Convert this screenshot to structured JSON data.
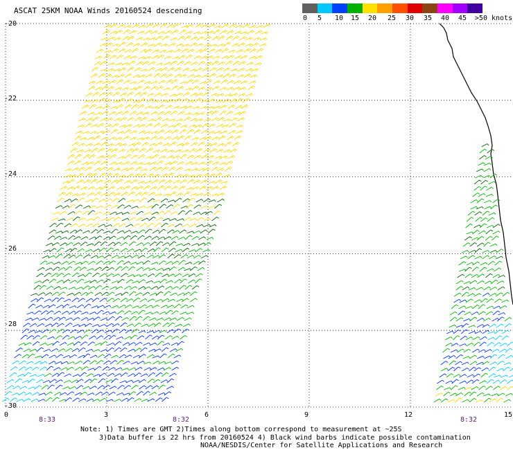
{
  "title": "ASCAT 25KM NOAA Winds 20160524 descending",
  "legend": {
    "colors": [
      "#606060",
      "#00c8ff",
      "#0040ff",
      "#00b000",
      "#ffe000",
      "#ffa000",
      "#ff5000",
      "#e00000",
      "#8b4513",
      "#ff00ff",
      "#a000ff",
      "#4000a0"
    ],
    "labels": [
      "0",
      "5",
      "10",
      "15",
      "20",
      "25",
      "30",
      "35",
      "40",
      "45",
      ">50 knots"
    ]
  },
  "axes": {
    "x_ticks": [
      "0",
      "3",
      "6",
      "9",
      "12",
      "15"
    ],
    "y_ticks": [
      "-20",
      "-22",
      "-24",
      "-26",
      "-28",
      "-30"
    ],
    "lon_range": [
      0,
      15
    ],
    "lat_range": [
      -30,
      -20
    ]
  },
  "pass_times": [
    "8:33",
    "8:32",
    "8:32"
  ],
  "notes": {
    "line1": "Note: 1) Times are GMT 2)Times along bottom correspond to measurement at ~25S",
    "line2": "3)Data buffer is 22 hrs from 20160524 4) Black wind barbs indicate possible contamination",
    "line3": "NOAA/NESDIS/Center for Satellite Applications and Research"
  }
}
